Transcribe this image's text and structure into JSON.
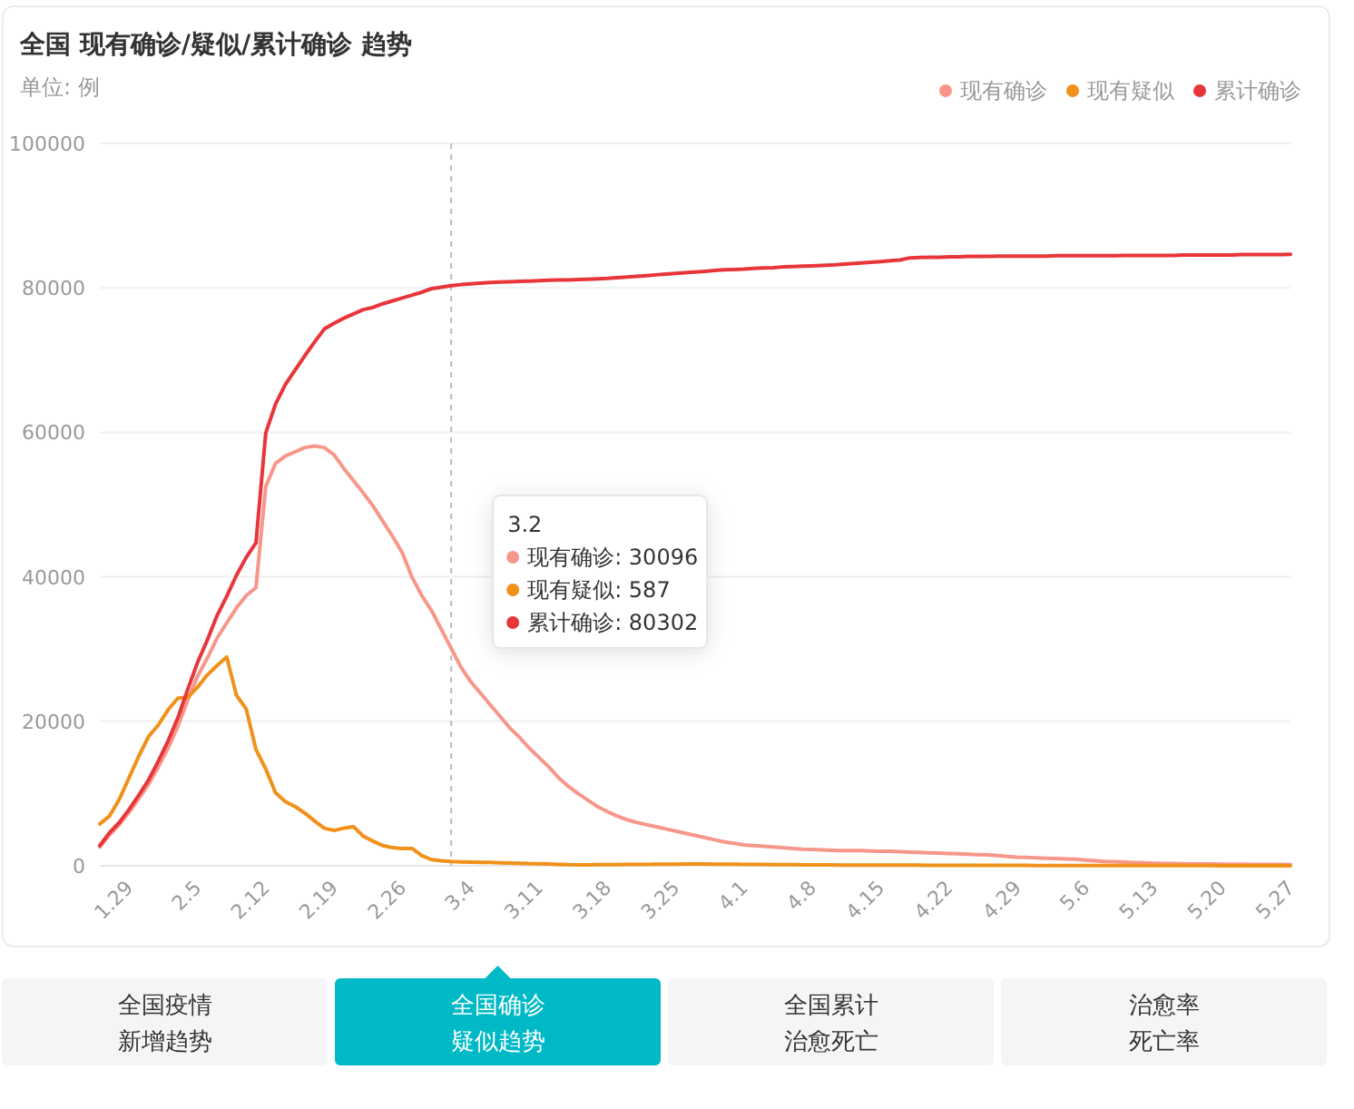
{
  "chart_data": {
    "type": "line",
    "title": "全国 现有确诊/疑似/累计确诊 趋势",
    "subtitle": "单位: 例",
    "categories": [
      null,
      null,
      null,
      "1.29",
      null,
      null,
      null,
      null,
      null,
      null,
      "2.5",
      null,
      null,
      null,
      null,
      null,
      null,
      "2.12",
      null,
      null,
      null,
      null,
      null,
      null,
      "2.19",
      null,
      null,
      null,
      null,
      null,
      null,
      "2.26",
      null,
      null,
      null,
      null,
      null,
      null,
      "3.4",
      null,
      null,
      null,
      null,
      null,
      null,
      "3.11",
      null,
      null,
      null,
      null,
      null,
      null,
      "3.18",
      null,
      null,
      null,
      null,
      null,
      null,
      "3.25",
      null,
      null,
      null,
      null,
      null,
      null,
      "4.1",
      null,
      null,
      null,
      null,
      null,
      null,
      "4.8",
      null,
      null,
      null,
      null,
      null,
      null,
      "4.15",
      null,
      null,
      null,
      null,
      null,
      null,
      "4.22",
      null,
      null,
      null,
      null,
      null,
      null,
      "4.29",
      null,
      null,
      null,
      null,
      null,
      null,
      "5.6",
      null,
      null,
      null,
      null,
      null,
      null,
      "5.13",
      null,
      null,
      null,
      null,
      null,
      null,
      "5.20",
      null,
      null,
      null,
      null,
      null,
      null,
      "5.27"
    ],
    "series": [
      {
        "name": "现有确诊",
        "color": "#f7978a",
        "values": [
          2600,
          4300,
          5700,
          7400,
          9300,
          11300,
          13700,
          16300,
          19300,
          22900,
          26200,
          28700,
          31500,
          33600,
          35700,
          37400,
          38500,
          52500,
          55700,
          56700,
          57300,
          57900,
          58100,
          57900,
          56900,
          55000,
          53300,
          51600,
          49800,
          47700,
          45600,
          43300,
          39900,
          37400,
          35300,
          32700,
          30096,
          27500,
          25500,
          23900,
          22300,
          20700,
          19100,
          17800,
          16300,
          15000,
          13700,
          12200,
          11000,
          10000,
          9100,
          8200,
          7500,
          6900,
          6400,
          6000,
          5700,
          5400,
          5100,
          4800,
          4500,
          4200,
          3900,
          3600,
          3300,
          3100,
          2900,
          2800,
          2700,
          2600,
          2500,
          2400,
          2300,
          2250,
          2200,
          2150,
          2100,
          2100,
          2100,
          2050,
          2000,
          2000,
          1950,
          1900,
          1850,
          1800,
          1750,
          1700,
          1650,
          1600,
          1550,
          1500,
          1400,
          1300,
          1200,
          1150,
          1100,
          1050,
          1000,
          950,
          900,
          800,
          700,
          600,
          550,
          500,
          450,
          400,
          350,
          320,
          300,
          280,
          260,
          250,
          240,
          230,
          220,
          210,
          200,
          200,
          190,
          180,
          170
        ]
      },
      {
        "name": "现有疑似",
        "color": "#f0911a",
        "values": [
          5800,
          6900,
          9200,
          12200,
          15200,
          17900,
          19500,
          21600,
          23200,
          23300,
          24700,
          26400,
          27700,
          28900,
          23600,
          21700,
          16100,
          13400,
          10100,
          8900,
          8200,
          7300,
          6200,
          5200,
          4900,
          5200,
          5400,
          4100,
          3400,
          2800,
          2500,
          2400,
          2400,
          1400,
          850,
          700,
          587,
          520,
          500,
          480,
          460,
          420,
          380,
          350,
          300,
          280,
          250,
          200,
          150,
          130,
          140,
          150,
          160,
          170,
          180,
          190,
          200,
          210,
          220,
          230,
          240,
          250,
          240,
          230,
          220,
          210,
          200,
          190,
          180,
          170,
          160,
          150,
          140,
          130,
          120,
          110,
          100,
          100,
          100,
          90,
          90,
          90,
          80,
          80,
          80,
          70,
          70,
          70,
          60,
          60,
          60,
          50,
          50,
          50,
          50,
          50,
          40,
          40,
          40,
          40,
          40,
          40,
          30,
          30,
          30,
          30,
          30,
          30,
          20,
          20,
          20,
          20,
          20,
          20,
          20,
          10,
          10,
          10,
          10,
          10,
          10,
          10,
          10
        ]
      },
      {
        "name": "累计确诊",
        "color": "#e8353a",
        "values": [
          2800,
          4600,
          6000,
          7800,
          9800,
          11900,
          14500,
          17300,
          20500,
          24400,
          28100,
          31200,
          34600,
          37300,
          40200,
          42700,
          44700,
          59900,
          63900,
          66600,
          68600,
          70600,
          72500,
          74300,
          75100,
          75800,
          76400,
          77000,
          77300,
          77800,
          78200,
          78600,
          79000,
          79400,
          79900,
          80100,
          80302,
          80450,
          80550,
          80650,
          80750,
          80800,
          80850,
          80900,
          80950,
          81000,
          81050,
          81100,
          81100,
          81150,
          81200,
          81250,
          81300,
          81400,
          81500,
          81600,
          81700,
          81800,
          81900,
          82000,
          82100,
          82200,
          82300,
          82400,
          82500,
          82550,
          82600,
          82700,
          82750,
          82800,
          82900,
          82950,
          83000,
          83050,
          83100,
          83150,
          83250,
          83350,
          83450,
          83550,
          83650,
          83750,
          83850,
          84150,
          84200,
          84250,
          84250,
          84300,
          84300,
          84350,
          84350,
          84350,
          84400,
          84400,
          84400,
          84400,
          84400,
          84400,
          84450,
          84450,
          84450,
          84450,
          84450,
          84450,
          84450,
          84500,
          84500,
          84500,
          84500,
          84500,
          84500,
          84550,
          84550,
          84550,
          84550,
          84550,
          84550,
          84600,
          84600,
          84600,
          84600,
          84600,
          84650
        ]
      }
    ],
    "ylim": [
      0,
      100000
    ],
    "yticks": [
      0,
      20000,
      40000,
      60000,
      80000,
      100000
    ],
    "grid": "y",
    "legend": "top right",
    "line_style": "solid",
    "annotations": [
      "3.2",
      "现有确诊: 30096",
      "现有疑似: 587",
      "累计确诊: 80302",
      "全国疫情",
      "新增趋势",
      "全国确诊",
      "疑似趋势",
      "全国累计",
      "治愈死亡",
      "治愈率",
      "死亡率"
    ]
  }
}
